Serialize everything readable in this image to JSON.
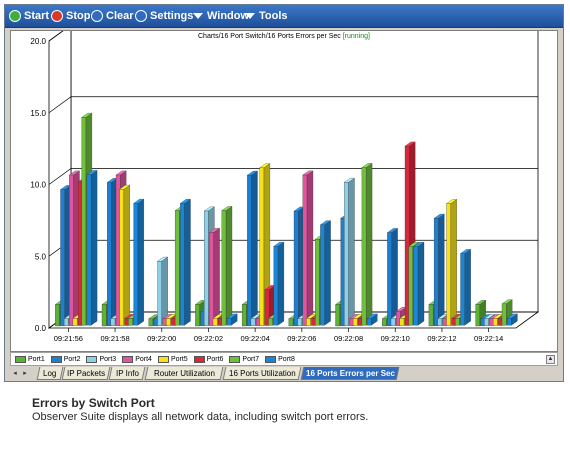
{
  "toolbar": {
    "buttons": [
      {
        "label": "Start",
        "icon": "play-icon",
        "color": "#3fae3a"
      },
      {
        "label": "Stop",
        "icon": "stop-icon",
        "color": "#d8372b"
      },
      {
        "label": "Clear",
        "icon": "clear-icon",
        "color": "#2f6cc0"
      },
      {
        "label": "Settings",
        "icon": "settings-icon",
        "color": "#2f6cc0"
      },
      {
        "label": "Window",
        "icon": "dropdown-arrow-icon"
      },
      {
        "label": "Tools",
        "icon": "dropdown-arrow-icon"
      }
    ]
  },
  "chart": {
    "title": "Charts/16 Port Switch/16 Ports Errors per Sec",
    "status": "[running]"
  },
  "chart_data": {
    "type": "bar",
    "title": "Charts/16 Port Switch/16 Ports Errors per Sec",
    "ylim": [
      0,
      20
    ],
    "yticks": [
      "0.0",
      "5.0",
      "10.0",
      "15.0",
      "20.0"
    ],
    "grid": true,
    "legend_position": "bottom",
    "categories": [
      "09:21:56",
      "09:21:58",
      "09:22:00",
      "09:22:02",
      "09:22:04",
      "09:22:06",
      "09:22:08",
      "09:22:10",
      "09:22:12",
      "09:22:14"
    ],
    "series": [
      {
        "name": "Port1",
        "color": "#5cb234",
        "values": [
          1.5,
          1.5,
          0.5,
          1.5,
          1.5,
          0.5,
          1.5,
          0.5,
          1.5,
          1.5
        ]
      },
      {
        "name": "Port2",
        "color": "#1e7fd0",
        "values": [
          9.5,
          10.0,
          0.5,
          1.0,
          10.5,
          8.0,
          7.5,
          6.5,
          7.5,
          0.5
        ]
      },
      {
        "name": "Port3",
        "color": "#8ed0e8",
        "values": [
          0.5,
          0.5,
          4.5,
          8.0,
          0.5,
          0.5,
          10.0,
          0.5,
          0.5,
          0.5
        ]
      },
      {
        "name": "Port4",
        "color": "#e0559e",
        "values": [
          10.5,
          10.5,
          0.5,
          6.5,
          0.5,
          10.5,
          0.5,
          1.0,
          0.5,
          0.5
        ]
      },
      {
        "name": "Port5",
        "color": "#f5e21b",
        "values": [
          0.5,
          9.5,
          0.5,
          0.5,
          11.0,
          0.5,
          0.5,
          0.5,
          8.5,
          0.5
        ]
      },
      {
        "name": "Port6",
        "color": "#d8283c",
        "values": [
          10.0,
          0.5,
          0.5,
          0.5,
          2.5,
          0.5,
          0.5,
          12.5,
          0.5,
          0.5
        ]
      },
      {
        "name": "Port7",
        "color": "#6fbe3c",
        "values": [
          14.5,
          0.5,
          8.0,
          8.0,
          0.5,
          6.0,
          11.0,
          5.5,
          0.5,
          1.5
        ]
      },
      {
        "name": "Port8",
        "color": "#1b86d6",
        "values": [
          10.5,
          8.5,
          8.5,
          0.5,
          5.5,
          7.0,
          0.5,
          5.5,
          5.0,
          0.5
        ]
      }
    ]
  },
  "legend": {
    "items": [
      {
        "label": "Port1",
        "color": "#5cb234"
      },
      {
        "label": "Port2",
        "color": "#1e7fd0"
      },
      {
        "label": "Port3",
        "color": "#8ed0e8"
      },
      {
        "label": "Port4",
        "color": "#e0559e"
      },
      {
        "label": "Port5",
        "color": "#f5e21b"
      },
      {
        "label": "Port6",
        "color": "#d8283c"
      },
      {
        "label": "Port7",
        "color": "#6fbe3c"
      },
      {
        "label": "Port8",
        "color": "#1b86d6"
      }
    ]
  },
  "tabs": [
    {
      "label": "Log",
      "active": false
    },
    {
      "label": "IP Packets",
      "active": false
    },
    {
      "label": "IP Info",
      "active": false
    },
    {
      "label": "Router Utilization",
      "active": false
    },
    {
      "label": "16 Ports Utilization",
      "active": false
    },
    {
      "label": "16 Ports Errors per Sec",
      "active": true
    }
  ],
  "caption": {
    "title": "Errors by Switch Port",
    "text": "Observer Suite displays all network data, including switch port errors."
  }
}
